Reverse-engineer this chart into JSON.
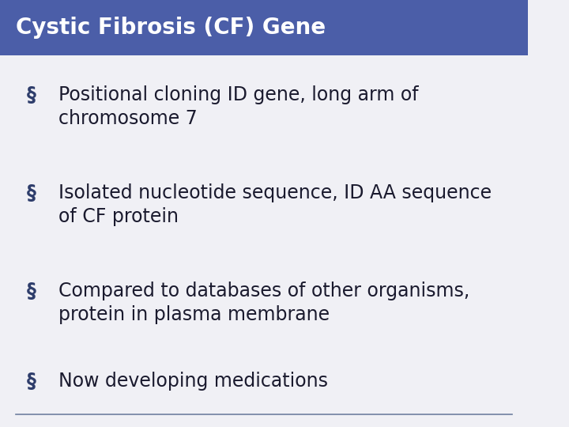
{
  "title": "Cystic Fibrosis (CF) Gene",
  "title_bg_color": "#4B5EA8",
  "title_text_color": "#FFFFFF",
  "title_fontsize": 20,
  "body_bg_color": "#F0F0F5",
  "bullet_color": "#2E3D6B",
  "bullet_text_color": "#1A1A2E",
  "bullet_fontsize": 17,
  "bullets": [
    "Positional cloning ID gene, long arm of\nchromosome 7",
    "Isolated nucleotide sequence, ID AA sequence\nof CF protein",
    "Compared to databases of other organisms,\nprotein in plasma membrane",
    "Now developing medications"
  ],
  "bullet_symbol": "§",
  "bottom_line_color": "#7080A0",
  "fig_width": 7.2,
  "fig_height": 5.4,
  "dpi": 100
}
